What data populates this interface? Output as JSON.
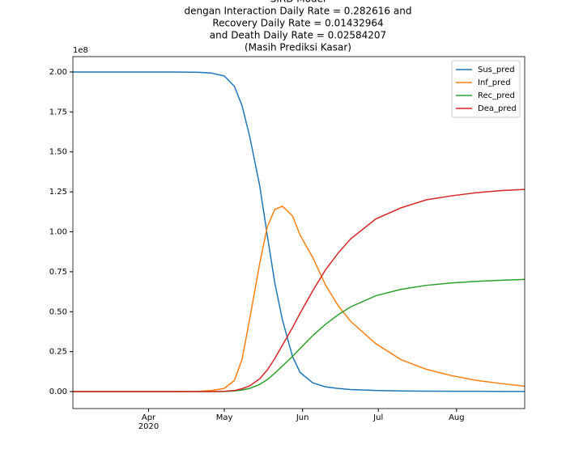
{
  "chart_data": {
    "type": "line",
    "title": [
      "SIRD Model",
      "dengan Interaction Daily Rate = 0.282616 and",
      "Recovery Daily Rate = 0.01432964",
      "and Death Daily Rate = 0.02584207",
      "(Masih Prediksi Kasar)"
    ],
    "y_offset_label": "1e8",
    "x_year_label": "2020",
    "x": [
      0,
      40,
      50,
      55,
      60,
      64,
      67,
      70,
      74,
      77,
      80,
      83,
      87,
      90,
      95,
      100,
      105,
      110,
      120,
      130,
      140,
      150,
      160,
      170,
      179
    ],
    "series": [
      {
        "name": "Sus_pred",
        "color": "#1f77b4",
        "values": [
          2.0,
          2.0,
          1.998,
          1.993,
          1.975,
          1.91,
          1.79,
          1.6,
          1.29,
          0.98,
          0.68,
          0.45,
          0.22,
          0.12,
          0.055,
          0.03,
          0.02,
          0.013,
          0.007,
          0.004,
          0.003,
          0.002,
          0.002,
          0.001,
          0.001
        ]
      },
      {
        "name": "Inf_pred",
        "color": "#ff7f0e",
        "values": [
          0,
          0.0003,
          0.002,
          0.007,
          0.02,
          0.07,
          0.2,
          0.45,
          0.8,
          1.03,
          1.14,
          1.16,
          1.1,
          0.98,
          0.84,
          0.67,
          0.54,
          0.44,
          0.3,
          0.2,
          0.14,
          0.1,
          0.07,
          0.05,
          0.034
        ]
      },
      {
        "name": "Rec_pred",
        "color": "#2ca02c",
        "values": [
          0,
          0,
          0,
          0,
          0.001,
          0.004,
          0.01,
          0.02,
          0.045,
          0.075,
          0.115,
          0.16,
          0.22,
          0.27,
          0.35,
          0.42,
          0.48,
          0.53,
          0.6,
          0.64,
          0.665,
          0.68,
          0.69,
          0.697,
          0.702
        ]
      },
      {
        "name": "Dea_pred",
        "color": "#d62728",
        "values": [
          0,
          0,
          0,
          0,
          0.002,
          0.007,
          0.018,
          0.036,
          0.08,
          0.135,
          0.207,
          0.29,
          0.4,
          0.49,
          0.63,
          0.76,
          0.865,
          0.955,
          1.08,
          1.15,
          1.2,
          1.225,
          1.245,
          1.258,
          1.265
        ]
      }
    ],
    "xlim": [
      0,
      179
    ],
    "xticks": [
      {
        "value": 30,
        "label": "Apr"
      },
      {
        "value": 60,
        "label": "May"
      },
      {
        "value": 91,
        "label": "Jun"
      },
      {
        "value": 121,
        "label": "Jul"
      },
      {
        "value": 152,
        "label": "Aug"
      }
    ],
    "ylim": [
      -0.106,
      2.096
    ],
    "yticks": [
      {
        "value": 0,
        "label": "0.00"
      },
      {
        "value": 0.25,
        "label": "0.25"
      },
      {
        "value": 0.5,
        "label": "0.50"
      },
      {
        "value": 0.75,
        "label": "0.75"
      },
      {
        "value": 1,
        "label": "1.00"
      },
      {
        "value": 1.25,
        "label": "1.25"
      },
      {
        "value": 1.5,
        "label": "1.50"
      },
      {
        "value": 1.75,
        "label": "1.75"
      },
      {
        "value": 2,
        "label": "2.00"
      }
    ],
    "legend": "upper right"
  }
}
